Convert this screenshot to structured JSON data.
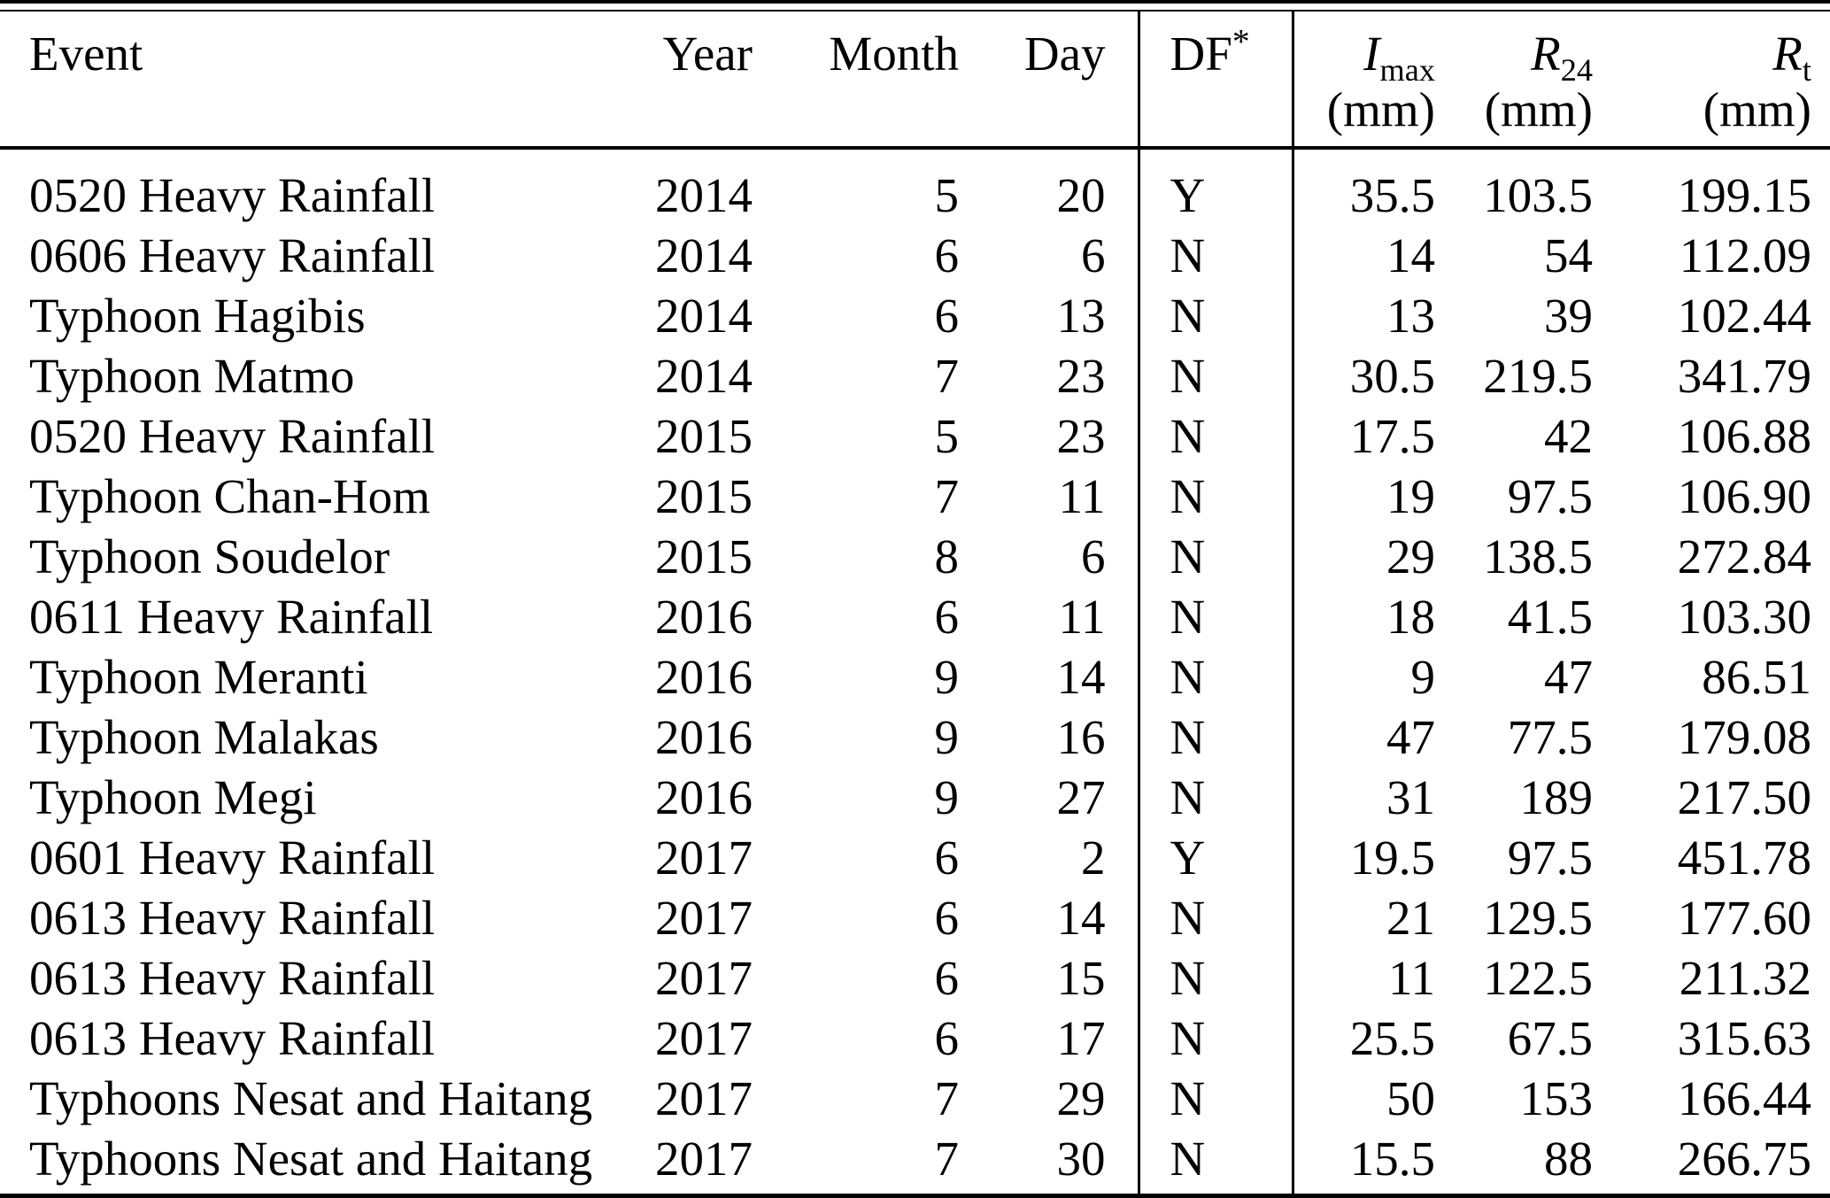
{
  "table": {
    "header": {
      "event": "Event",
      "year": "Year",
      "month": "Month",
      "day": "Day",
      "df_label": "DF",
      "df_sup": "*",
      "imax_letter": "I",
      "imax_sub": "max",
      "imax_unit": "(mm)",
      "r24_letter": "R",
      "r24_sub": "24",
      "r24_unit": "(mm)",
      "rt_letter": "R",
      "rt_sub": "t",
      "rt_unit": "(mm)"
    },
    "rows": [
      {
        "event": "0520 Heavy Rainfall",
        "year": "2014",
        "month": "5",
        "day": "20",
        "df": "Y",
        "imax": "35.5",
        "r24": "103.5",
        "rt": "199.15"
      },
      {
        "event": "0606 Heavy Rainfall",
        "year": "2014",
        "month": "6",
        "day": "6",
        "df": "N",
        "imax": "14",
        "r24": "54",
        "rt": "112.09"
      },
      {
        "event": "Typhoon Hagibis",
        "year": "2014",
        "month": "6",
        "day": "13",
        "df": "N",
        "imax": "13",
        "r24": "39",
        "rt": "102.44"
      },
      {
        "event": "Typhoon Matmo",
        "year": "2014",
        "month": "7",
        "day": "23",
        "df": "N",
        "imax": "30.5",
        "r24": "219.5",
        "rt": "341.79"
      },
      {
        "event": "0520 Heavy Rainfall",
        "year": "2015",
        "month": "5",
        "day": "23",
        "df": "N",
        "imax": "17.5",
        "r24": "42",
        "rt": "106.88"
      },
      {
        "event": "Typhoon Chan-Hom",
        "year": "2015",
        "month": "7",
        "day": "11",
        "df": "N",
        "imax": "19",
        "r24": "97.5",
        "rt": "106.90"
      },
      {
        "event": "Typhoon Soudelor",
        "year": "2015",
        "month": "8",
        "day": "6",
        "df": "N",
        "imax": "29",
        "r24": "138.5",
        "rt": "272.84"
      },
      {
        "event": "0611 Heavy Rainfall",
        "year": "2016",
        "month": "6",
        "day": "11",
        "df": "N",
        "imax": "18",
        "r24": "41.5",
        "rt": "103.30"
      },
      {
        "event": "Typhoon Meranti",
        "year": "2016",
        "month": "9",
        "day": "14",
        "df": "N",
        "imax": "9",
        "r24": "47",
        "rt": "86.51"
      },
      {
        "event": "Typhoon Malakas",
        "year": "2016",
        "month": "9",
        "day": "16",
        "df": "N",
        "imax": "47",
        "r24": "77.5",
        "rt": "179.08"
      },
      {
        "event": "Typhoon Megi",
        "year": "2016",
        "month": "9",
        "day": "27",
        "df": "N",
        "imax": "31",
        "r24": "189",
        "rt": "217.50"
      },
      {
        "event": "0601 Heavy Rainfall",
        "year": "2017",
        "month": "6",
        "day": "2",
        "df": "Y",
        "imax": "19.5",
        "r24": "97.5",
        "rt": "451.78"
      },
      {
        "event": "0613 Heavy Rainfall",
        "year": "2017",
        "month": "6",
        "day": "14",
        "df": "N",
        "imax": "21",
        "r24": "129.5",
        "rt": "177.60"
      },
      {
        "event": "0613 Heavy Rainfall",
        "year": "2017",
        "month": "6",
        "day": "15",
        "df": "N",
        "imax": "11",
        "r24": "122.5",
        "rt": "211.32"
      },
      {
        "event": "0613 Heavy Rainfall",
        "year": "2017",
        "month": "6",
        "day": "17",
        "df": "N",
        "imax": "25.5",
        "r24": "67.5",
        "rt": "315.63"
      },
      {
        "event": "Typhoons Nesat and Haitang",
        "year": "2017",
        "month": "7",
        "day": "29",
        "df": "N",
        "imax": "50",
        "r24": "153",
        "rt": "166.44"
      },
      {
        "event": "Typhoons Nesat and Haitang",
        "year": "2017",
        "month": "7",
        "day": "30",
        "df": "N",
        "imax": "15.5",
        "r24": "88",
        "rt": "266.75"
      }
    ]
  }
}
